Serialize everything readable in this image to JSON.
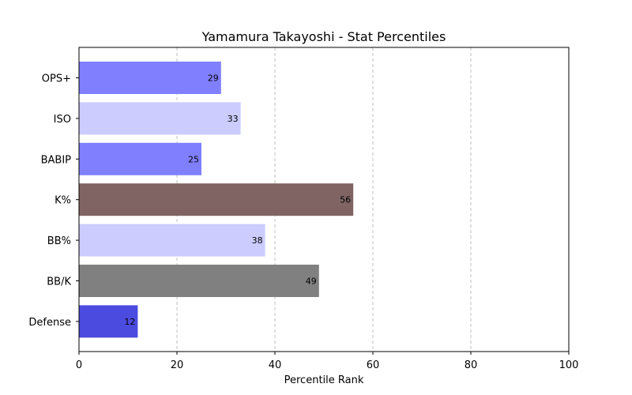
{
  "chart_data": {
    "type": "bar",
    "orientation": "horizontal",
    "title": "Yamamura Takayoshi - Stat Percentiles",
    "xlabel": "Percentile Rank",
    "ylabel": "",
    "xlim": [
      0,
      100
    ],
    "xticks": [
      0,
      20,
      40,
      60,
      80,
      100
    ],
    "grid": "x-dashed",
    "categories": [
      "OPS+",
      "ISO",
      "BABIP",
      "K%",
      "BB%",
      "BB/K",
      "Defense"
    ],
    "values": [
      29,
      33,
      25,
      56,
      38,
      49,
      12
    ],
    "colors": [
      "#8080ff",
      "#ccccff",
      "#8080ff",
      "#806464",
      "#ccccff",
      "#808080",
      "#4b4bdf"
    ]
  }
}
